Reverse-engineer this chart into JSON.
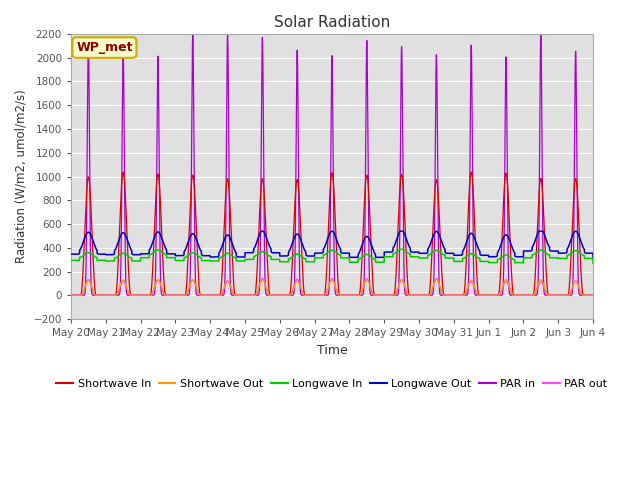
{
  "title": "Solar Radiation",
  "xlabel": "Time",
  "ylabel": "Radiation (W/m2, umol/m2/s)",
  "ylim": [
    -200,
    2200
  ],
  "yticks": [
    -200,
    0,
    200,
    400,
    600,
    800,
    1000,
    1200,
    1400,
    1600,
    1800,
    2000,
    2200
  ],
  "x_tick_labels": [
    "May 20",
    "May 21",
    "May 22",
    "May 23",
    "May 24",
    "May 25",
    "May 26",
    "May 27",
    "May 28",
    "May 29",
    "May 30",
    "May 31",
    "Jun 1",
    "Jun 2",
    "Jun 3",
    "Jun 4"
  ],
  "n_days": 15,
  "bg_color": "#e0e0e0",
  "fig_bg_color": "#ffffff",
  "annotation_text": "WP_met",
  "annotation_bg": "#ffffcc",
  "annotation_border": "#ccaa00",
  "series": {
    "shortwave_in": {
      "color": "#dd0000",
      "label": "Shortwave In"
    },
    "shortwave_out": {
      "color": "#ff9900",
      "label": "Shortwave Out"
    },
    "longwave_in": {
      "color": "#00cc00",
      "label": "Longwave In"
    },
    "longwave_out": {
      "color": "#0000cc",
      "label": "Longwave Out"
    },
    "par_in": {
      "color": "#aa00cc",
      "label": "PAR in"
    },
    "par_out": {
      "color": "#ff44ff",
      "label": "PAR out"
    }
  }
}
